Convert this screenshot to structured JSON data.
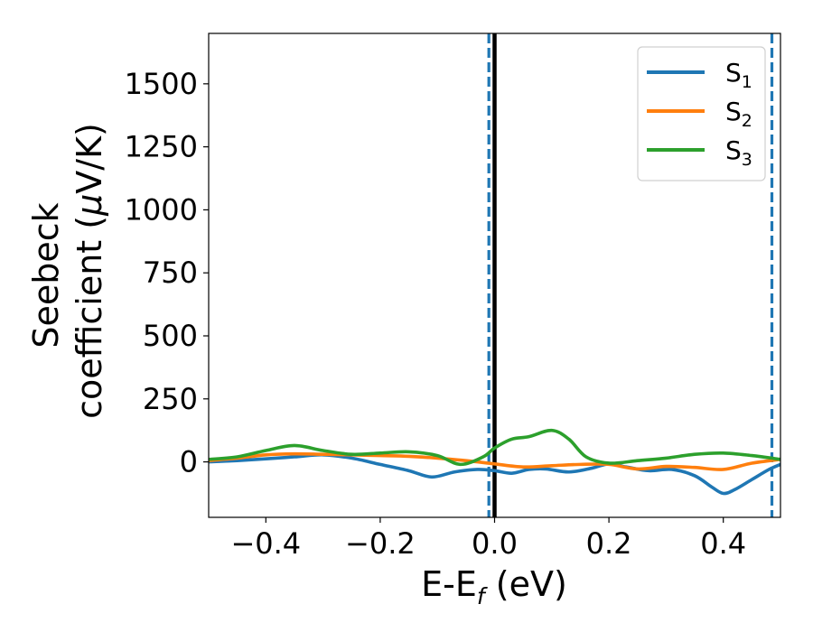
{
  "chart_data": {
    "type": "line",
    "xlabel": {
      "main": "E-E",
      "sub": "f",
      "tail": " (eV)"
    },
    "ylabel": {
      "line1": "Seebeck",
      "line2_pre": "coefficient  (",
      "mu": "μ",
      "line2_post": "V/K)"
    },
    "xlim": [
      -0.5,
      0.5
    ],
    "ylim": [
      -220,
      1700
    ],
    "xticks": [
      -0.4,
      -0.2,
      0.0,
      0.2,
      0.4
    ],
    "xtick_labels": [
      "−0.4",
      "−0.2",
      "0.0",
      "0.2",
      "0.4"
    ],
    "yticks": [
      0,
      250,
      500,
      750,
      1000,
      1250,
      1500
    ],
    "ytick_labels": [
      "0",
      "250",
      "500",
      "750",
      "1000",
      "1250",
      "1500"
    ],
    "legend_position": "top-right",
    "vlines": [
      {
        "x": 0.0,
        "color": "#000000",
        "style": "solid"
      },
      {
        "x": -0.01,
        "color": "#1f77b4",
        "style": "dashed"
      },
      {
        "x": 0.485,
        "color": "#1f77b4",
        "style": "dashed"
      }
    ],
    "series": [
      {
        "name": "S1",
        "name_main": "S",
        "name_sub": "1",
        "color": "#1f77b4",
        "x": [
          -0.5,
          -0.45,
          -0.4,
          -0.35,
          -0.3,
          -0.25,
          -0.2,
          -0.15,
          -0.11,
          -0.07,
          -0.03,
          0.0,
          0.03,
          0.06,
          0.09,
          0.13,
          0.17,
          0.2,
          0.23,
          0.27,
          0.31,
          0.35,
          0.38,
          0.4,
          0.42,
          0.45,
          0.48,
          0.5
        ],
        "y": [
          0,
          5,
          12,
          20,
          28,
          15,
          -10,
          -35,
          -60,
          -40,
          -30,
          -35,
          -45,
          -30,
          -28,
          -40,
          -25,
          -8,
          -20,
          -35,
          -30,
          -55,
          -100,
          -125,
          -110,
          -70,
          -30,
          -10
        ]
      },
      {
        "name": "S2",
        "name_main": "S",
        "name_sub": "2",
        "color": "#ff7f0e",
        "x": [
          -0.5,
          -0.45,
          -0.4,
          -0.35,
          -0.3,
          -0.25,
          -0.2,
          -0.15,
          -0.1,
          -0.05,
          0.0,
          0.05,
          0.1,
          0.15,
          0.2,
          0.25,
          0.3,
          0.35,
          0.4,
          0.45,
          0.5
        ],
        "y": [
          5,
          15,
          28,
          32,
          30,
          28,
          25,
          22,
          15,
          5,
          -8,
          -20,
          -15,
          -10,
          -10,
          -28,
          -18,
          -22,
          -30,
          -5,
          10
        ]
      },
      {
        "name": "S3",
        "name_main": "S",
        "name_sub": "3",
        "color": "#2ca02c",
        "x": [
          -0.5,
          -0.45,
          -0.4,
          -0.35,
          -0.3,
          -0.25,
          -0.2,
          -0.15,
          -0.1,
          -0.06,
          -0.02,
          0.0,
          0.03,
          0.06,
          0.1,
          0.13,
          0.16,
          0.2,
          0.25,
          0.3,
          0.35,
          0.4,
          0.45,
          0.5
        ],
        "y": [
          10,
          20,
          45,
          65,
          45,
          30,
          35,
          40,
          25,
          -10,
          20,
          55,
          90,
          100,
          125,
          90,
          20,
          -5,
          5,
          15,
          30,
          35,
          25,
          10
        ]
      }
    ]
  }
}
